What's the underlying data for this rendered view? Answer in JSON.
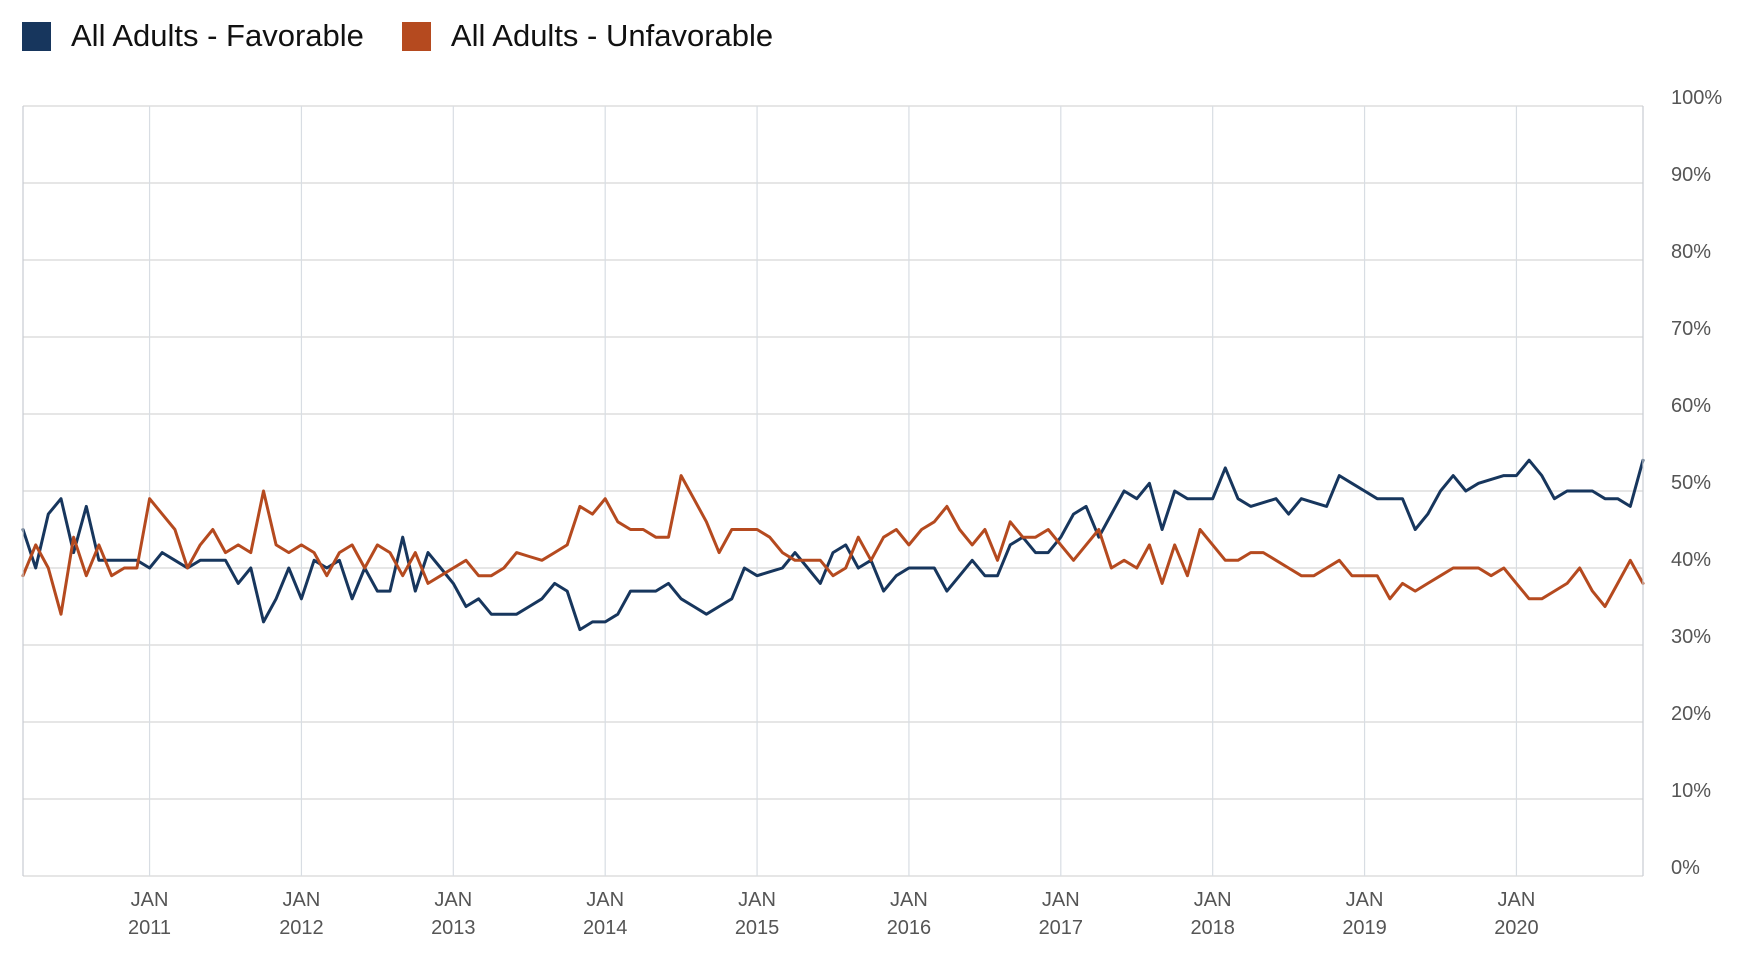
{
  "legend": {
    "items": [
      {
        "label": "All Adults - Favorable",
        "color": "#17365d"
      },
      {
        "label": "All Adults - Unfavorable",
        "color": "#b54a1f"
      }
    ]
  },
  "chart_data": {
    "type": "line",
    "title": "",
    "xlabel": "",
    "ylabel": "",
    "x_start": "2010-03",
    "x_end": "2020-11",
    "ylim": [
      0,
      100
    ],
    "y_ticks": [
      0,
      10,
      20,
      30,
      40,
      50,
      60,
      70,
      80,
      90,
      100
    ],
    "y_tick_labels": [
      "0%",
      "10%",
      "20%",
      "30%",
      "40%",
      "50%",
      "60%",
      "70%",
      "80%",
      "90%",
      "100%"
    ],
    "y_axis_position": "right",
    "x_ticks": [
      {
        "date": "2011-01",
        "month": "JAN",
        "year": "2011"
      },
      {
        "date": "2012-01",
        "month": "JAN",
        "year": "2012"
      },
      {
        "date": "2013-01",
        "month": "JAN",
        "year": "2013"
      },
      {
        "date": "2014-01",
        "month": "JAN",
        "year": "2014"
      },
      {
        "date": "2015-01",
        "month": "JAN",
        "year": "2015"
      },
      {
        "date": "2016-01",
        "month": "JAN",
        "year": "2016"
      },
      {
        "date": "2017-01",
        "month": "JAN",
        "year": "2017"
      },
      {
        "date": "2018-01",
        "month": "JAN",
        "year": "2018"
      },
      {
        "date": "2019-01",
        "month": "JAN",
        "year": "2019"
      },
      {
        "date": "2020-01",
        "month": "JAN",
        "year": "2020"
      }
    ],
    "grid": true,
    "legend_position": "top-left",
    "series": [
      {
        "name": "All Adults - Favorable",
        "color": "#17365d",
        "points": [
          [
            "2010-03",
            45
          ],
          [
            "2010-04",
            40
          ],
          [
            "2010-05",
            47
          ],
          [
            "2010-06",
            49
          ],
          [
            "2010-07",
            42
          ],
          [
            "2010-08",
            48
          ],
          [
            "2010-09",
            41
          ],
          [
            "2010-10",
            41
          ],
          [
            "2010-11",
            41
          ],
          [
            "2010-12",
            41
          ],
          [
            "2011-01",
            40
          ],
          [
            "2011-02",
            42
          ],
          [
            "2011-03",
            41
          ],
          [
            "2011-04",
            40
          ],
          [
            "2011-05",
            41
          ],
          [
            "2011-06",
            41
          ],
          [
            "2011-07",
            41
          ],
          [
            "2011-08",
            38
          ],
          [
            "2011-09",
            40
          ],
          [
            "2011-10",
            33
          ],
          [
            "2011-11",
            36
          ],
          [
            "2011-12",
            40
          ],
          [
            "2012-01",
            36
          ],
          [
            "2012-02",
            41
          ],
          [
            "2012-03",
            40
          ],
          [
            "2012-04",
            41
          ],
          [
            "2012-05",
            36
          ],
          [
            "2012-06",
            40
          ],
          [
            "2012-07",
            37
          ],
          [
            "2012-08",
            37
          ],
          [
            "2012-09",
            44
          ],
          [
            "2012-10",
            37
          ],
          [
            "2012-11",
            42
          ],
          [
            "2012-12",
            40
          ],
          [
            "2013-01",
            38
          ],
          [
            "2013-02",
            35
          ],
          [
            "2013-03",
            36
          ],
          [
            "2013-04",
            34
          ],
          [
            "2013-05",
            34
          ],
          [
            "2013-06",
            34
          ],
          [
            "2013-07",
            35
          ],
          [
            "2013-08",
            36
          ],
          [
            "2013-09",
            38
          ],
          [
            "2013-10",
            37
          ],
          [
            "2013-11",
            32
          ],
          [
            "2013-12",
            33
          ],
          [
            "2014-01",
            33
          ],
          [
            "2014-02",
            34
          ],
          [
            "2014-03",
            37
          ],
          [
            "2014-04",
            37
          ],
          [
            "2014-05",
            37
          ],
          [
            "2014-06",
            38
          ],
          [
            "2014-07",
            36
          ],
          [
            "2014-08",
            35
          ],
          [
            "2014-09",
            34
          ],
          [
            "2014-10",
            35
          ],
          [
            "2014-11",
            36
          ],
          [
            "2014-12",
            40
          ],
          [
            "2015-01",
            39
          ],
          [
            "2015-02",
            39.5
          ],
          [
            "2015-03",
            40
          ],
          [
            "2015-04",
            42
          ],
          [
            "2015-05",
            40
          ],
          [
            "2015-06",
            38
          ],
          [
            "2015-07",
            42
          ],
          [
            "2015-08",
            43
          ],
          [
            "2015-09",
            40
          ],
          [
            "2015-10",
            41
          ],
          [
            "2015-11",
            37
          ],
          [
            "2015-12",
            39
          ],
          [
            "2016-01",
            40
          ],
          [
            "2016-02",
            40
          ],
          [
            "2016-03",
            40
          ],
          [
            "2016-04",
            37
          ],
          [
            "2016-05",
            39
          ],
          [
            "2016-06",
            41
          ],
          [
            "2016-07",
            39
          ],
          [
            "2016-08",
            39
          ],
          [
            "2016-09",
            43
          ],
          [
            "2016-10",
            44
          ],
          [
            "2016-11",
            42
          ],
          [
            "2016-12",
            42
          ],
          [
            "2017-01",
            44
          ],
          [
            "2017-02",
            47
          ],
          [
            "2017-03",
            48
          ],
          [
            "2017-04",
            44
          ],
          [
            "2017-05",
            47
          ],
          [
            "2017-06",
            50
          ],
          [
            "2017-07",
            49
          ],
          [
            "2017-08",
            51
          ],
          [
            "2017-09",
            45
          ],
          [
            "2017-10",
            50
          ],
          [
            "2017-11",
            49
          ],
          [
            "2017-12",
            49
          ],
          [
            "2018-01",
            49
          ],
          [
            "2018-02",
            53
          ],
          [
            "2018-03",
            49
          ],
          [
            "2018-04",
            48
          ],
          [
            "2018-05",
            48.5
          ],
          [
            "2018-06",
            49
          ],
          [
            "2018-07",
            47
          ],
          [
            "2018-08",
            49
          ],
          [
            "2018-09",
            48.5
          ],
          [
            "2018-10",
            48
          ],
          [
            "2018-11",
            52
          ],
          [
            "2018-12",
            51
          ],
          [
            "2019-01",
            50
          ],
          [
            "2019-02",
            49
          ],
          [
            "2019-03",
            49
          ],
          [
            "2019-04",
            49
          ],
          [
            "2019-05",
            45
          ],
          [
            "2019-06",
            47
          ],
          [
            "2019-07",
            50
          ],
          [
            "2019-08",
            52
          ],
          [
            "2019-09",
            50
          ],
          [
            "2019-10",
            51
          ],
          [
            "2019-11",
            51.5
          ],
          [
            "2019-12",
            52
          ],
          [
            "2020-01",
            52
          ],
          [
            "2020-02",
            54
          ],
          [
            "2020-03",
            52
          ],
          [
            "2020-04",
            49
          ],
          [
            "2020-05",
            50
          ],
          [
            "2020-06",
            50
          ],
          [
            "2020-07",
            50
          ],
          [
            "2020-08",
            49
          ],
          [
            "2020-09",
            49
          ],
          [
            "2020-10",
            48
          ],
          [
            "2020-11",
            54
          ]
        ]
      },
      {
        "name": "All Adults - Unfavorable",
        "color": "#b54a1f",
        "points": [
          [
            "2010-03",
            39
          ],
          [
            "2010-04",
            43
          ],
          [
            "2010-05",
            40
          ],
          [
            "2010-06",
            34
          ],
          [
            "2010-07",
            44
          ],
          [
            "2010-08",
            39
          ],
          [
            "2010-09",
            43
          ],
          [
            "2010-10",
            39
          ],
          [
            "2010-11",
            40
          ],
          [
            "2010-12",
            40
          ],
          [
            "2011-01",
            49
          ],
          [
            "2011-02",
            47
          ],
          [
            "2011-03",
            45
          ],
          [
            "2011-04",
            40
          ],
          [
            "2011-05",
            43
          ],
          [
            "2011-06",
            45
          ],
          [
            "2011-07",
            42
          ],
          [
            "2011-08",
            43
          ],
          [
            "2011-09",
            42
          ],
          [
            "2011-10",
            50
          ],
          [
            "2011-11",
            43
          ],
          [
            "2011-12",
            42
          ],
          [
            "2012-01",
            43
          ],
          [
            "2012-02",
            42
          ],
          [
            "2012-03",
            39
          ],
          [
            "2012-04",
            42
          ],
          [
            "2012-05",
            43
          ],
          [
            "2012-06",
            40
          ],
          [
            "2012-07",
            43
          ],
          [
            "2012-08",
            42
          ],
          [
            "2012-09",
            39
          ],
          [
            "2012-10",
            42
          ],
          [
            "2012-11",
            38
          ],
          [
            "2012-12",
            39
          ],
          [
            "2013-01",
            40
          ],
          [
            "2013-02",
            41
          ],
          [
            "2013-03",
            39
          ],
          [
            "2013-04",
            39
          ],
          [
            "2013-05",
            40
          ],
          [
            "2013-06",
            42
          ],
          [
            "2013-07",
            41.5
          ],
          [
            "2013-08",
            41
          ],
          [
            "2013-09",
            42
          ],
          [
            "2013-10",
            43
          ],
          [
            "2013-11",
            48
          ],
          [
            "2013-12",
            47
          ],
          [
            "2014-01",
            49
          ],
          [
            "2014-02",
            46
          ],
          [
            "2014-03",
            45
          ],
          [
            "2014-04",
            45
          ],
          [
            "2014-05",
            44
          ],
          [
            "2014-06",
            44
          ],
          [
            "2014-07",
            52
          ],
          [
            "2014-08",
            49
          ],
          [
            "2014-09",
            46
          ],
          [
            "2014-10",
            42
          ],
          [
            "2014-11",
            45
          ],
          [
            "2014-12",
            45
          ],
          [
            "2015-01",
            45
          ],
          [
            "2015-02",
            44
          ],
          [
            "2015-03",
            42
          ],
          [
            "2015-04",
            41
          ],
          [
            "2015-05",
            41
          ],
          [
            "2015-06",
            41
          ],
          [
            "2015-07",
            39
          ],
          [
            "2015-08",
            40
          ],
          [
            "2015-09",
            44
          ],
          [
            "2015-10",
            41
          ],
          [
            "2015-11",
            44
          ],
          [
            "2015-12",
            45
          ],
          [
            "2016-01",
            43
          ],
          [
            "2016-02",
            45
          ],
          [
            "2016-03",
            46
          ],
          [
            "2016-04",
            48
          ],
          [
            "2016-05",
            45
          ],
          [
            "2016-06",
            43
          ],
          [
            "2016-07",
            45
          ],
          [
            "2016-08",
            41
          ],
          [
            "2016-09",
            46
          ],
          [
            "2016-10",
            44
          ],
          [
            "2016-11",
            44
          ],
          [
            "2016-12",
            45
          ],
          [
            "2017-01",
            43
          ],
          [
            "2017-02",
            41
          ],
          [
            "2017-03",
            43
          ],
          [
            "2017-04",
            45
          ],
          [
            "2017-05",
            40
          ],
          [
            "2017-06",
            41
          ],
          [
            "2017-07",
            40
          ],
          [
            "2017-08",
            43
          ],
          [
            "2017-09",
            38
          ],
          [
            "2017-10",
            43
          ],
          [
            "2017-11",
            39
          ],
          [
            "2017-12",
            45
          ],
          [
            "2018-01",
            43
          ],
          [
            "2018-02",
            41
          ],
          [
            "2018-03",
            41
          ],
          [
            "2018-04",
            42
          ],
          [
            "2018-05",
            42
          ],
          [
            "2018-06",
            41
          ],
          [
            "2018-07",
            40
          ],
          [
            "2018-08",
            39
          ],
          [
            "2018-09",
            39
          ],
          [
            "2018-10",
            40
          ],
          [
            "2018-11",
            41
          ],
          [
            "2018-12",
            39
          ],
          [
            "2019-01",
            39
          ],
          [
            "2019-02",
            39
          ],
          [
            "2019-03",
            36
          ],
          [
            "2019-04",
            38
          ],
          [
            "2019-05",
            37
          ],
          [
            "2019-06",
            38
          ],
          [
            "2019-07",
            39
          ],
          [
            "2019-08",
            40
          ],
          [
            "2019-09",
            40
          ],
          [
            "2019-10",
            40
          ],
          [
            "2019-11",
            39
          ],
          [
            "2019-12",
            40
          ],
          [
            "2020-01",
            38
          ],
          [
            "2020-02",
            36
          ],
          [
            "2020-03",
            36
          ],
          [
            "2020-04",
            37
          ],
          [
            "2020-05",
            38
          ],
          [
            "2020-06",
            40
          ],
          [
            "2020-07",
            37
          ],
          [
            "2020-08",
            35
          ],
          [
            "2020-09",
            38
          ],
          [
            "2020-10",
            41
          ],
          [
            "2020-11",
            38
          ]
        ]
      }
    ]
  }
}
